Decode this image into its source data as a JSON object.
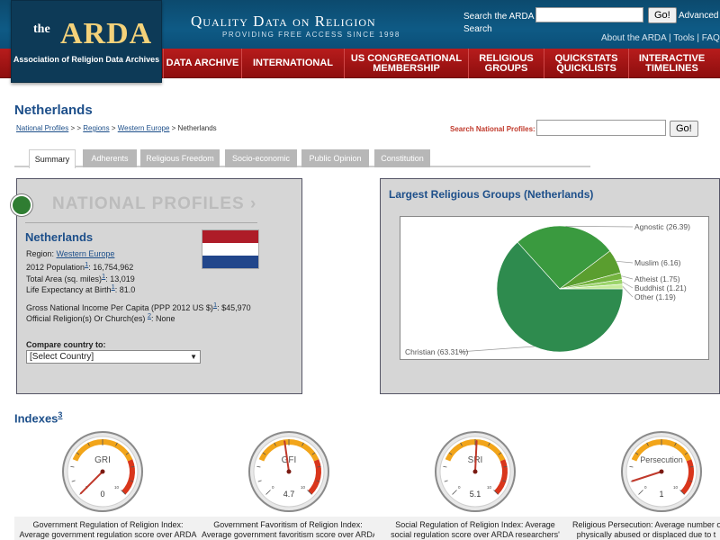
{
  "header": {
    "logo_the": "the",
    "logo_arda": "ARDA",
    "logo_sub": "Association of Religion Data Archives",
    "tagline": "Quality Data on Religion",
    "tagline_sub": "PROVIDING FREE ACCESS SINCE 1998",
    "search_label": "Search the ARDA Search",
    "search_value": "",
    "go_label": "Go!",
    "advanced_label": "Advanced",
    "links": [
      "About the ARDA",
      "Tools",
      "FAQs"
    ]
  },
  "nav": {
    "items": [
      {
        "label": "DATA ARCHIVE"
      },
      {
        "label": "INTERNATIONAL"
      },
      {
        "label": "US CONGREGATIONAL MEMBERSHIP"
      },
      {
        "label": "RELIGIOUS GROUPS"
      },
      {
        "label": "QUICKSTATS QUICKLISTS"
      },
      {
        "label": "INTERACTIVE TIMELINES"
      }
    ]
  },
  "page": {
    "title": "Netherlands",
    "breadcrumb": {
      "national_profiles": "National Profiles",
      "sep1": " > > ",
      "regions": "Regions",
      "sep2": " > ",
      "western_europe": "Western Europe",
      "sep3": " > ",
      "current": "Netherlands"
    },
    "np_search_label": "Search National Profiles:",
    "np_search_value": "",
    "go_label": "Go!"
  },
  "tabs": [
    {
      "label": "Summary",
      "active": true
    },
    {
      "label": "Adherents",
      "active": false
    },
    {
      "label": "Religious Freedom",
      "active": false
    },
    {
      "label": "Socio-economic",
      "active": false
    },
    {
      "label": "Public Opinion",
      "active": false
    },
    {
      "label": "Constitution",
      "active": false
    }
  ],
  "profile": {
    "banner": "NATIONAL PROFILES",
    "banner_arrow": "›",
    "country": "Netherlands",
    "region_label": "Region: ",
    "region_value": "Western Europe",
    "population_label": "2012 Population",
    "population_sup": "1",
    "population_value": ": 16,754,962",
    "area_label": "Total Area (sq. miles)",
    "area_sup": "1",
    "area_value": ": 13,019",
    "life_label": "Life Expectancy at Birth",
    "life_sup": "1",
    "life_value": ": 81.0",
    "gni_label": "Gross National Income Per Capita (PPP 2012 US $)",
    "gni_sup": "1",
    "gni_value": ": $45,970",
    "official_label": "Official Religion(s) Or Church(es) ",
    "official_sup": "2",
    "official_value": ": None",
    "compare_label": "Compare country to:",
    "compare_selected": "[Select Country]",
    "flag_colors": [
      "#ae1c28",
      "#ffffff",
      "#21468b"
    ]
  },
  "chart_panel": {
    "title": "Largest Religious Groups (Netherlands)"
  },
  "chart_data": {
    "type": "pie",
    "title": "Largest Religious Groups (Netherlands)",
    "slices": [
      {
        "label": "Christian (63.31%)",
        "value": 63.31,
        "color": "#2e8b4e"
      },
      {
        "label": "Agnostic (26.39)",
        "value": 26.39,
        "color": "#3a9a3f"
      },
      {
        "label": "Muslim (6.16)",
        "value": 6.16,
        "color": "#5a9e2f"
      },
      {
        "label": "Atheist (1.75)",
        "value": 1.75,
        "color": "#74b33f"
      },
      {
        "label": "Buddhist (1.21)",
        "value": 1.21,
        "color": "#9bd46a"
      },
      {
        "label": "Other (1.19)",
        "value": 1.19,
        "color": "#c6ec9c"
      }
    ]
  },
  "indexes": {
    "title": "Indexes",
    "sup": "3",
    "gauges": [
      {
        "name": "GRI",
        "value": 0,
        "value_label": "0",
        "desc1": "Government Regulation of Religion Index:",
        "desc2": "Average government regulation score over ARDA"
      },
      {
        "name": "GFI",
        "value": 4.7,
        "value_label": "4.7",
        "desc1": "Government Favoritism of Religion Index:",
        "desc2": "Average government favoritism score over ARDA"
      },
      {
        "name": "SRI",
        "value": 5.1,
        "value_label": "5.1",
        "desc1": "Social Regulation of Religion Index: Average",
        "desc2": "social regulation score over ARDA researchers'"
      },
      {
        "name": "Persecution",
        "value": 1,
        "value_label": "1",
        "desc1": "Religious Persecution: Average number of",
        "desc2": "physically abused or displaced due to t"
      }
    ],
    "scale_min": "0",
    "scale_max": "10"
  }
}
